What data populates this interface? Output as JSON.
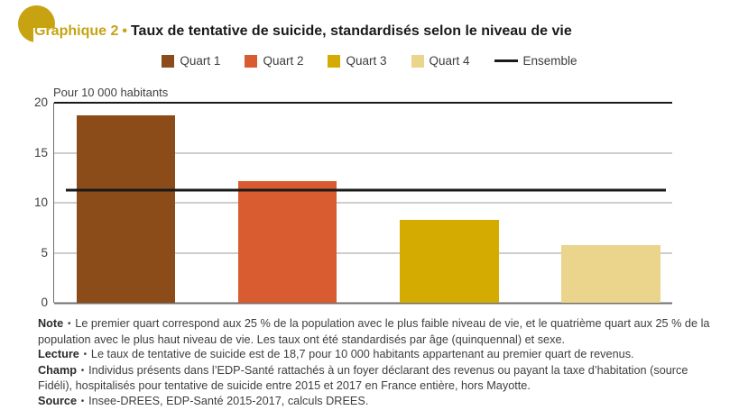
{
  "header": {
    "kicker": "Graphique 2",
    "separator": "•",
    "title": "Taux de tentative de suicide, standardisés selon le niveau de vie"
  },
  "chart_data": {
    "type": "bar",
    "unit_label": "Pour 10 000 habitants",
    "categories": [
      "Quart 1",
      "Quart 2",
      "Quart 3",
      "Quart 4"
    ],
    "values": [
      18.7,
      12.2,
      8.3,
      5.8
    ],
    "colors": [
      "#8B4C1A",
      "#D95B30",
      "#D4AB00",
      "#EBD48C"
    ],
    "reference_line": {
      "name": "Ensemble",
      "value": 11.3,
      "color": "#1A1A1A"
    },
    "ylim": [
      0,
      20
    ],
    "yticks": [
      0,
      5,
      10,
      15,
      20
    ],
    "grid": true,
    "legend_position": "top"
  },
  "notes": {
    "bullet": "•",
    "items": [
      {
        "label": "Note",
        "text": "Le premier quart correspond aux 25 % de la population avec le plus faible niveau de vie, et le quatrième quart aux 25 % de la population avec le plus haut niveau de vie. Les taux ont été standardisés par âge (quinquennal) et sexe."
      },
      {
        "label": "Lecture",
        "text": "Le taux de tentative de suicide est de 18,7 pour 10 000 habitants appartenant au premier quart de revenus."
      },
      {
        "label": "Champ",
        "text": "Individus présents dans l’EDP-Santé rattachés à un foyer déclarant des revenus ou payant la taxe d’habitation (source Fidéli), hospitalisés pour tentative de suicide entre 2015 et 2017 en France entière, hors Mayotte."
      },
      {
        "label": "Source",
        "text": "Insee-DREES, EDP-Santé 2015-2017, calculs DREES."
      }
    ]
  },
  "colors": {
    "accent_gold": "#C7A312",
    "text_dark": "#3E3E3D",
    "gridline": "#9b9b9b",
    "axis": "#6F6F6F"
  }
}
